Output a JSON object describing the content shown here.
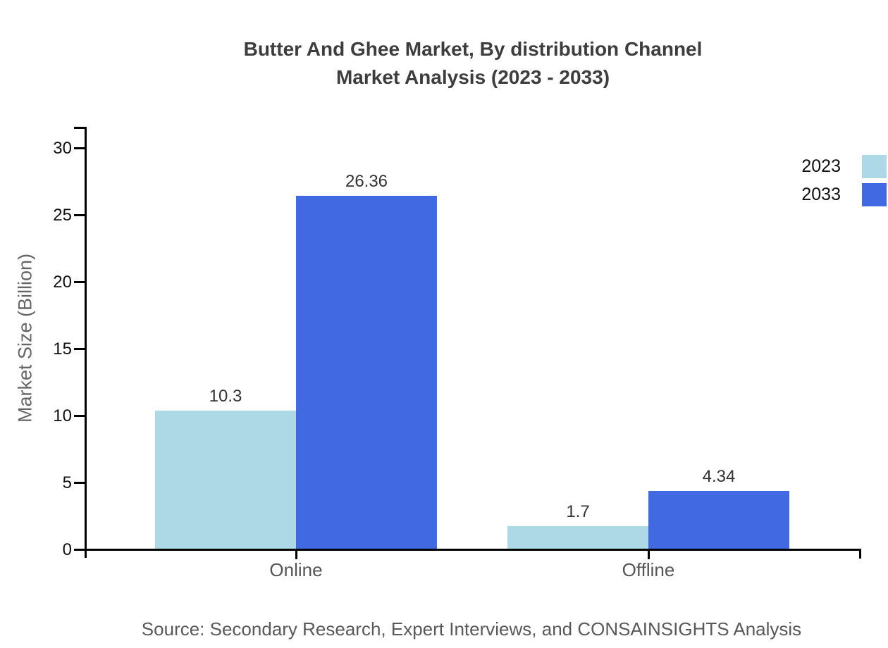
{
  "chart_data": {
    "type": "bar",
    "title": "Butter And Ghee Market, By distribution Channel Market Analysis (2023 - 2033)",
    "title_line1": "Butter And Ghee Market, By distribution Channel",
    "title_line2": "Market Analysis (2023 - 2033)",
    "categories": [
      "Online",
      "Offline"
    ],
    "series": [
      {
        "name": "2023",
        "color": "#ADD8E6",
        "values": [
          10.3,
          1.7
        ]
      },
      {
        "name": "2033",
        "color": "#4169E1",
        "values": [
          26.36,
          4.34
        ]
      }
    ],
    "bar_value_labels": [
      [
        "10.3",
        "1.7"
      ],
      [
        "26.36",
        "4.34"
      ]
    ],
    "xlabel": "",
    "ylabel": "Market Size (Billion)",
    "yticks": [
      0,
      5,
      10,
      15,
      20,
      25,
      30
    ],
    "ylim": [
      0,
      31.5
    ],
    "grid": false,
    "legend_position": "top-right",
    "axis_color": "#000000"
  },
  "footer": {
    "source_text": "Source: Secondary Research, Expert Interviews, and CONSAINSIGHTS Analysis"
  }
}
